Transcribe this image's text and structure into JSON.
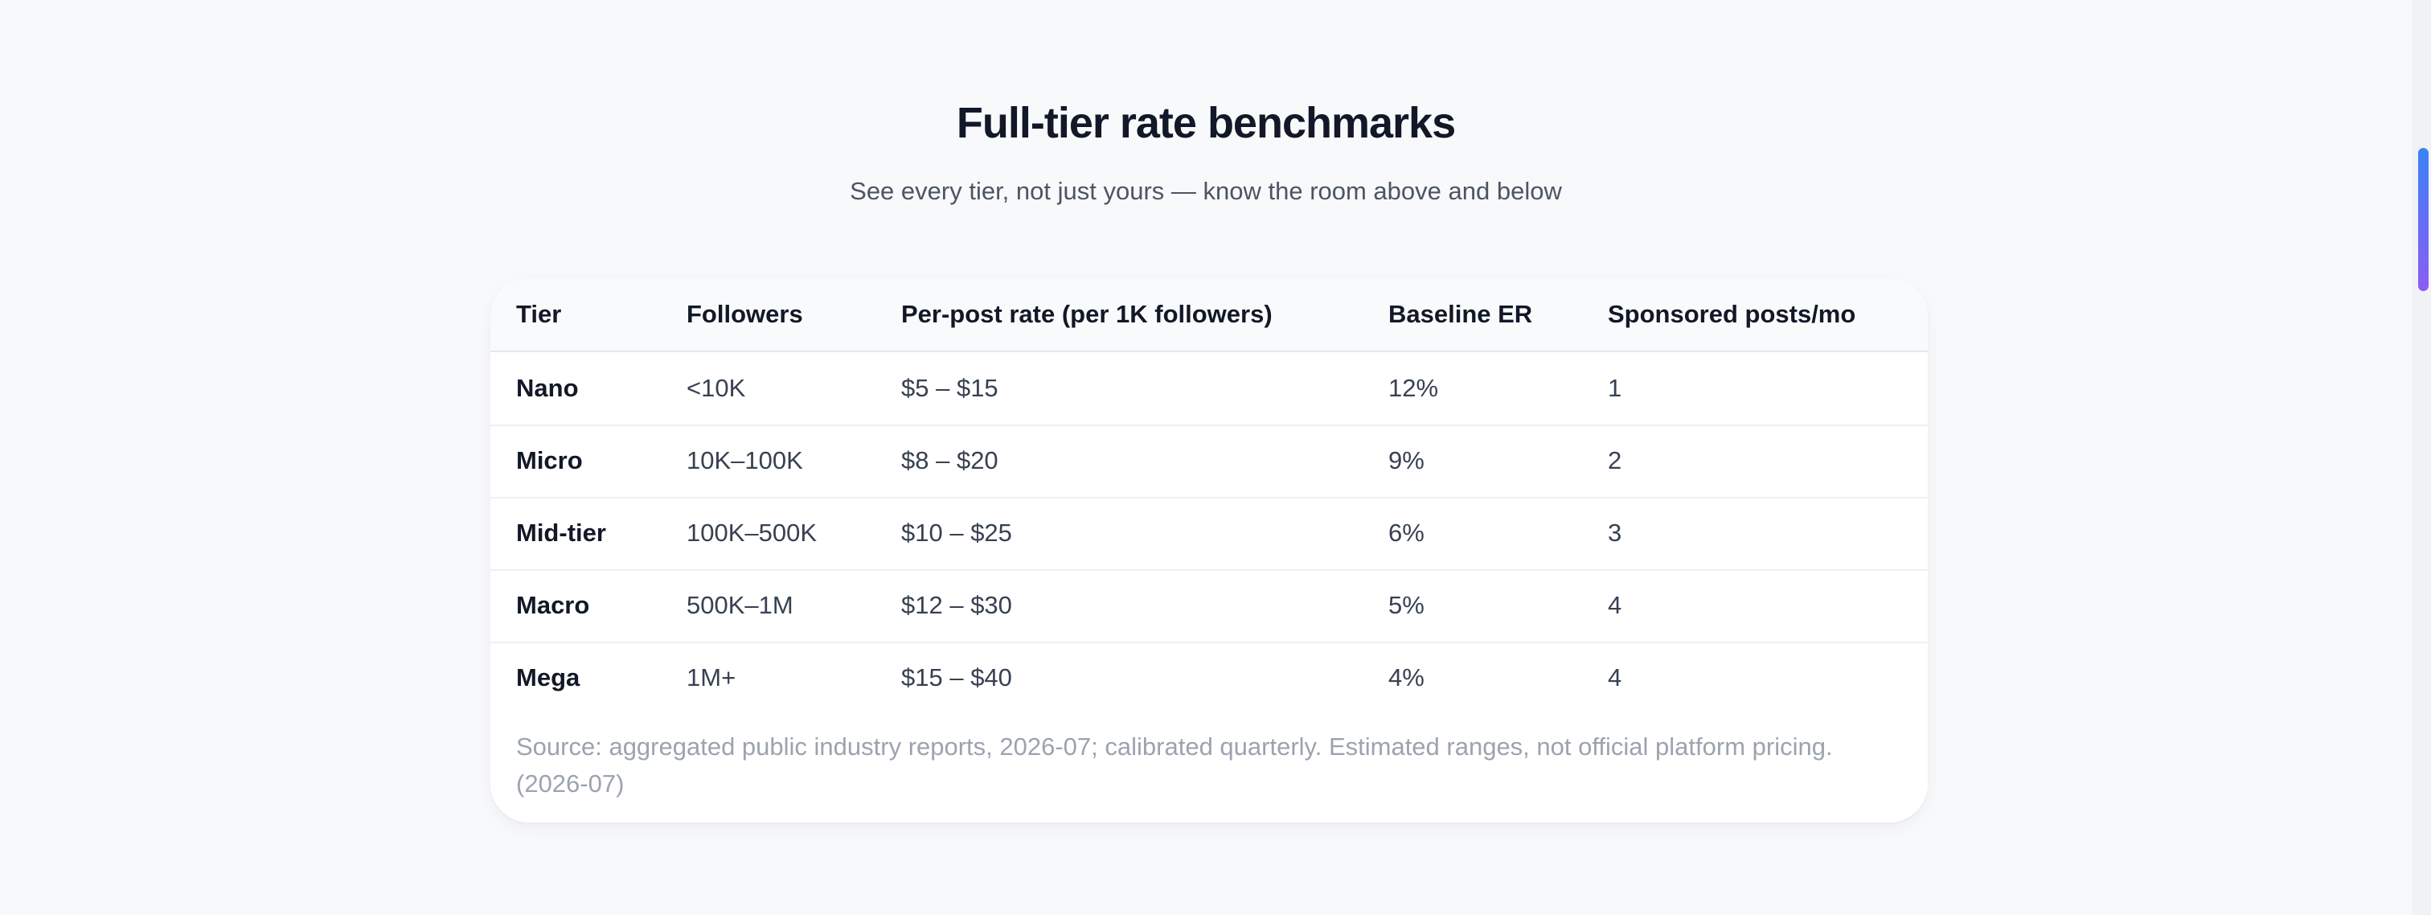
{
  "page": {
    "title": "Full-tier rate benchmarks",
    "subtitle": "See every tier, not just yours — know the room above and below"
  },
  "table": {
    "headers": [
      "Tier",
      "Followers",
      "Per-post rate (per 1K followers)",
      "Baseline ER",
      "Sponsored posts/mo"
    ],
    "rows": [
      [
        "Nano",
        "<10K",
        "$5 – $15",
        "12%",
        "1"
      ],
      [
        "Micro",
        "10K–100K",
        "$8 – $20",
        "9%",
        "2"
      ],
      [
        "Mid-tier",
        "100K–500K",
        "$10 – $25",
        "6%",
        "3"
      ],
      [
        "Macro",
        "500K–1M",
        "$12 – $30",
        "5%",
        "4"
      ],
      [
        "Mega",
        "1M+",
        "$15 – $40",
        "4%",
        "4"
      ]
    ],
    "source": "Source: aggregated public industry reports, 2026-07; calibrated quarterly. Estimated ranges, not official platform pricing. (2026-07)"
  },
  "colors": {
    "background": "#f8f9fb",
    "card": "#ffffff",
    "heading": "#111827",
    "muted": "#9ca3af",
    "scrollbar_start": "#3b82f6",
    "scrollbar_end": "#8b5cf6"
  }
}
